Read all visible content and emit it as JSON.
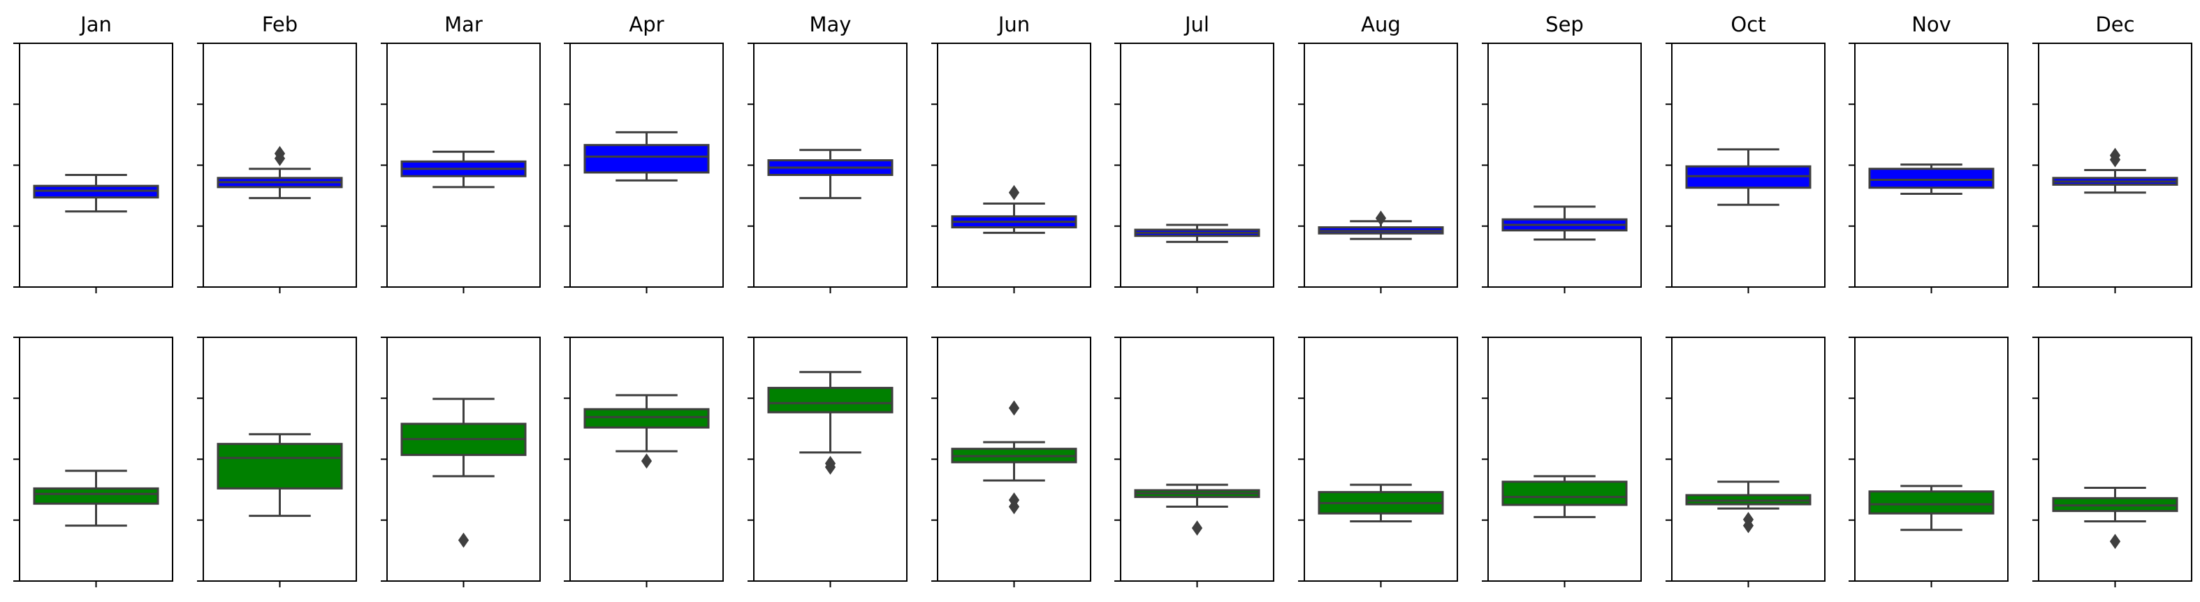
{
  "chart_data": {
    "type": "box",
    "categories": [
      "Jan",
      "Feb",
      "Mar",
      "Apr",
      "May",
      "Jun",
      "Jul",
      "Aug",
      "Sep",
      "Oct",
      "Nov",
      "Dec"
    ],
    "ylim": [
      0,
      4
    ],
    "yticks": [
      0,
      1,
      2,
      3,
      4
    ],
    "tick_labels_shown": false,
    "rows": [
      {
        "color": "#0000ff",
        "boxes": [
          {
            "whislo": 1.24,
            "q1": 1.47,
            "med": 1.58,
            "q3": 1.66,
            "whishi": 1.84,
            "fliers": []
          },
          {
            "whislo": 1.46,
            "q1": 1.64,
            "med": 1.72,
            "q3": 1.79,
            "whishi": 1.94,
            "fliers": [
              2.11,
              2.19
            ]
          },
          {
            "whislo": 1.64,
            "q1": 1.82,
            "med": 1.94,
            "q3": 2.06,
            "whishi": 2.22,
            "fliers": []
          },
          {
            "whislo": 1.75,
            "q1": 1.88,
            "med": 2.14,
            "q3": 2.33,
            "whishi": 2.54,
            "fliers": []
          },
          {
            "whislo": 1.46,
            "q1": 1.84,
            "med": 1.96,
            "q3": 2.08,
            "whishi": 2.25,
            "fliers": []
          },
          {
            "whislo": 0.89,
            "q1": 0.98,
            "med": 1.07,
            "q3": 1.16,
            "whishi": 1.37,
            "fliers": [
              1.55
            ]
          },
          {
            "whislo": 0.74,
            "q1": 0.84,
            "med": 0.89,
            "q3": 0.94,
            "whishi": 1.02,
            "fliers": []
          },
          {
            "whislo": 0.79,
            "q1": 0.88,
            "med": 0.92,
            "q3": 0.98,
            "whishi": 1.08,
            "fliers": [
              1.13
            ]
          },
          {
            "whislo": 0.78,
            "q1": 0.93,
            "med": 1.02,
            "q3": 1.11,
            "whishi": 1.32,
            "fliers": []
          },
          {
            "whislo": 1.35,
            "q1": 1.63,
            "med": 1.82,
            "q3": 1.98,
            "whishi": 2.26,
            "fliers": []
          },
          {
            "whislo": 1.53,
            "q1": 1.63,
            "med": 1.76,
            "q3": 1.94,
            "whishi": 2.01,
            "fliers": []
          },
          {
            "whislo": 1.55,
            "q1": 1.68,
            "med": 1.73,
            "q3": 1.79,
            "whishi": 1.92,
            "fliers": [
              2.09,
              2.16
            ]
          }
        ]
      },
      {
        "color": "#008000",
        "boxes": [
          {
            "whislo": 0.91,
            "q1": 1.27,
            "med": 1.43,
            "q3": 1.52,
            "whishi": 1.81,
            "fliers": []
          },
          {
            "whislo": 1.07,
            "q1": 1.52,
            "med": 2.02,
            "q3": 2.25,
            "whishi": 2.41,
            "fliers": []
          },
          {
            "whislo": 1.72,
            "q1": 2.07,
            "med": 2.33,
            "q3": 2.58,
            "whishi": 2.99,
            "fliers": [
              0.67
            ]
          },
          {
            "whislo": 2.13,
            "q1": 2.52,
            "med": 2.69,
            "q3": 2.82,
            "whishi": 3.05,
            "fliers": [
              1.97
            ]
          },
          {
            "whislo": 2.11,
            "q1": 2.77,
            "med": 2.92,
            "q3": 3.17,
            "whishi": 3.43,
            "fliers": [
              1.87,
              1.93
            ]
          },
          {
            "whislo": 1.65,
            "q1": 1.95,
            "med": 2.05,
            "q3": 2.17,
            "whishi": 2.28,
            "fliers": [
              1.22,
              1.33,
              2.84
            ]
          },
          {
            "whislo": 1.22,
            "q1": 1.38,
            "med": 1.44,
            "q3": 1.49,
            "whishi": 1.58,
            "fliers": [
              0.87
            ]
          },
          {
            "whislo": 0.98,
            "q1": 1.11,
            "med": 1.28,
            "q3": 1.46,
            "whishi": 1.58,
            "fliers": []
          },
          {
            "whislo": 1.05,
            "q1": 1.25,
            "med": 1.38,
            "q3": 1.63,
            "whishi": 1.72,
            "fliers": []
          },
          {
            "whislo": 1.19,
            "q1": 1.26,
            "med": 1.32,
            "q3": 1.41,
            "whishi": 1.63,
            "fliers": [
              0.91,
              1.01
            ]
          },
          {
            "whislo": 0.84,
            "q1": 1.11,
            "med": 1.26,
            "q3": 1.47,
            "whishi": 1.56,
            "fliers": []
          },
          {
            "whislo": 0.98,
            "q1": 1.15,
            "med": 1.24,
            "q3": 1.36,
            "whishi": 1.53,
            "fliers": [
              0.65
            ]
          }
        ]
      }
    ]
  }
}
